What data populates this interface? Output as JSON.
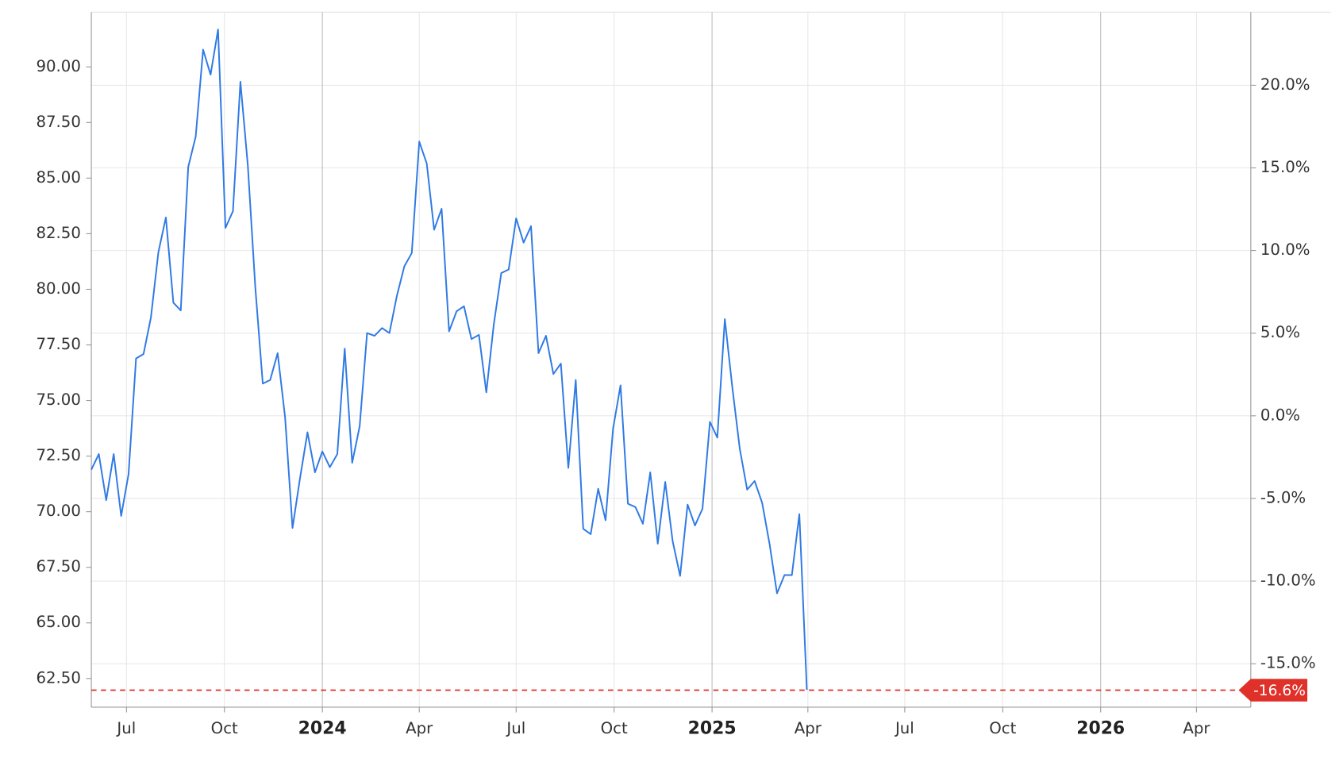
{
  "chart_data": {
    "type": "line",
    "xlim": [
      "2023-05-29",
      "2026-05-22"
    ],
    "xticks": [
      {
        "value": "2023-07",
        "label": "Jul"
      },
      {
        "value": "2023-10",
        "label": "Oct"
      },
      {
        "value": "2024-01",
        "label": "2024"
      },
      {
        "value": "2024-04",
        "label": "Apr"
      },
      {
        "value": "2024-07",
        "label": "Jul"
      },
      {
        "value": "2024-10",
        "label": "Oct"
      },
      {
        "value": "2025-01",
        "label": "2025"
      },
      {
        "value": "2025-04",
        "label": "Apr"
      },
      {
        "value": "2025-07",
        "label": "Jul"
      },
      {
        "value": "2025-10",
        "label": "Oct"
      },
      {
        "value": "2026-01",
        "label": "2026"
      },
      {
        "value": "2026-04",
        "label": "Apr"
      }
    ],
    "ylim": [
      61.21,
      92.46
    ],
    "yticks": [
      {
        "value": 62.5,
        "label": "62.50"
      },
      {
        "value": 65,
        "label": "65.00"
      },
      {
        "value": 67.5,
        "label": "67.50"
      },
      {
        "value": 70,
        "label": "70.00"
      },
      {
        "value": 72.5,
        "label": "72.50"
      },
      {
        "value": 75,
        "label": "75.00"
      },
      {
        "value": 77.5,
        "label": "77.50"
      },
      {
        "value": 80,
        "label": "80.00"
      },
      {
        "value": 82.5,
        "label": "82.50"
      },
      {
        "value": 85,
        "label": "85.00"
      },
      {
        "value": 87.5,
        "label": "87.50"
      },
      {
        "value": 90,
        "label": "90.00"
      }
    ],
    "y2lim": [
      -17.63,
      24.42
    ],
    "y2ticks": [
      {
        "value": -15,
        "label": "-15.0%"
      },
      {
        "value": -10,
        "label": "-10.0%"
      },
      {
        "value": -5,
        "label": "-5.0%"
      },
      {
        "value": 0,
        "label": "0.0%"
      },
      {
        "value": 5,
        "label": "5.0%"
      },
      {
        "value": 10,
        "label": "10.0%"
      },
      {
        "value": 15,
        "label": "15.0%"
      },
      {
        "value": 20,
        "label": "20.0%"
      }
    ],
    "grid": true,
    "series": [
      {
        "color": "#2f7ae5",
        "values": [
          71.89,
          72.59,
          70.52,
          72.59,
          69.81,
          71.69,
          76.89,
          77.09,
          78.73,
          81.67,
          83.23,
          79.4,
          79.05,
          85.5,
          86.87,
          90.78,
          89.65,
          91.68,
          82.76,
          83.51,
          89.33,
          85.58,
          80.1,
          75.76,
          75.92,
          77.13,
          74.23,
          69.27,
          71.5,
          73.57,
          71.77,
          72.71,
          72.0,
          72.59,
          77.33,
          72.2,
          73.84,
          78.03,
          77.91,
          78.26,
          78.03,
          79.71,
          81.04,
          81.63,
          86.64,
          85.66,
          82.68,
          83.62,
          78.11,
          79.01,
          79.24,
          77.76,
          77.95,
          75.37,
          78.42,
          80.73,
          80.89,
          83.19,
          82.1,
          82.84,
          77.13,
          77.91,
          76.19,
          76.66,
          71.97,
          75.92,
          69.23,
          68.99,
          71.03,
          69.62,
          73.73,
          75.68,
          70.36,
          70.21,
          69.46,
          71.77,
          68.56,
          71.34,
          68.68,
          67.11,
          70.32,
          69.38,
          70.13,
          74.04,
          73.33,
          78.66,
          75.6,
          72.83,
          70.99,
          71.38,
          70.4,
          68.56,
          66.33,
          67.15,
          67.15,
          69.89,
          61.99
        ]
      }
    ],
    "reference_line": {
      "value": -16.6,
      "label": "-16.6%",
      "color": "#e0302a",
      "axis": "y2"
    }
  }
}
